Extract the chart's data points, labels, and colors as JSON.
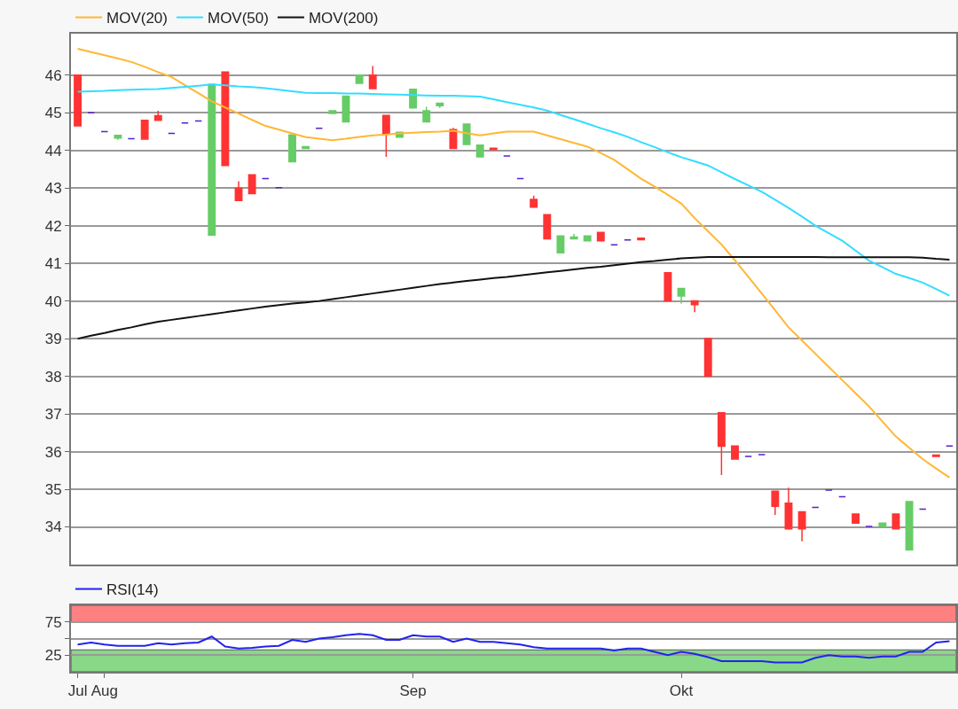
{
  "chart_data": [
    {
      "type": "candlestick",
      "categories": [
        null,
        null,
        null,
        null,
        null,
        null,
        null,
        null,
        null,
        null,
        null,
        null,
        null,
        null,
        null,
        null,
        null,
        null,
        null,
        null,
        null,
        null,
        null,
        null,
        null,
        null,
        null,
        null,
        null,
        null,
        null,
        null,
        null,
        null,
        null,
        null,
        null,
        null,
        null,
        null,
        null,
        null,
        null,
        null,
        null,
        null,
        null,
        null,
        null,
        null,
        null,
        null,
        null,
        null,
        null,
        null,
        null,
        null,
        null,
        null,
        null,
        null,
        null,
        null,
        null,
        null
      ],
      "ohlc": [
        [
          46.0,
          46.0,
          44.65,
          44.65
        ],
        [
          45.0,
          45.0,
          45.0,
          45.0
        ],
        [
          44.5,
          44.5,
          44.5,
          44.5
        ],
        [
          44.33,
          44.4,
          44.28,
          44.4
        ],
        [
          44.31,
          44.31,
          44.31,
          44.31
        ],
        [
          44.8,
          44.8,
          44.3,
          44.3
        ],
        [
          44.92,
          45.05,
          44.8,
          44.8
        ],
        [
          44.45,
          44.45,
          44.45,
          44.45
        ],
        [
          44.73,
          44.73,
          44.73,
          44.73
        ],
        [
          44.78,
          44.78,
          44.78,
          44.78
        ],
        [
          41.75,
          45.75,
          41.75,
          45.75
        ],
        [
          46.08,
          46.08,
          43.6,
          43.6
        ],
        [
          43.0,
          43.18,
          42.67,
          42.67
        ],
        [
          43.35,
          43.35,
          42.85,
          42.85
        ],
        [
          43.25,
          43.25,
          43.25,
          43.25
        ],
        [
          43.01,
          43.01,
          43.01,
          43.01
        ],
        [
          43.7,
          44.41,
          43.7,
          44.41
        ],
        [
          44.05,
          44.1,
          44.05,
          44.1
        ],
        [
          44.59,
          44.59,
          44.59,
          44.59
        ],
        [
          44.98,
          45.05,
          44.98,
          45.05
        ],
        [
          44.76,
          45.44,
          44.76,
          45.44
        ],
        [
          45.78,
          46.0,
          45.78,
          46.0
        ],
        [
          46.0,
          46.24,
          45.64,
          45.64
        ],
        [
          44.93,
          44.93,
          43.83,
          44.44
        ],
        [
          44.35,
          44.48,
          44.35,
          44.48
        ],
        [
          45.13,
          45.62,
          45.13,
          45.62
        ],
        [
          44.76,
          45.16,
          44.76,
          45.05
        ],
        [
          45.19,
          45.25,
          45.13,
          45.25
        ],
        [
          44.55,
          44.6,
          44.05,
          44.05
        ],
        [
          44.16,
          44.7,
          44.16,
          44.7
        ],
        [
          43.83,
          44.14,
          43.83,
          44.14
        ],
        [
          44.06,
          44.06,
          44.02,
          44.02
        ],
        [
          43.85,
          43.85,
          43.85,
          43.85
        ],
        [
          43.25,
          43.25,
          43.25,
          43.25
        ],
        [
          42.7,
          42.8,
          42.49,
          42.49
        ],
        [
          42.29,
          42.29,
          41.65,
          41.65
        ],
        [
          41.28,
          41.73,
          41.28,
          41.73
        ],
        [
          41.65,
          41.78,
          41.65,
          41.7
        ],
        [
          41.6,
          41.73,
          41.6,
          41.73
        ],
        [
          41.82,
          41.82,
          41.6,
          41.6
        ],
        [
          41.49,
          41.49,
          41.49,
          41.49
        ],
        [
          41.62,
          41.62,
          41.62,
          41.62
        ],
        [
          41.67,
          41.67,
          41.63,
          41.63
        ],
        null,
        [
          40.75,
          40.75,
          40.0,
          40.0
        ],
        [
          40.13,
          40.33,
          39.93,
          40.33
        ],
        [
          40.0,
          40.0,
          39.7,
          39.9
        ],
        [
          39.0,
          39.0,
          38.0,
          38.0
        ],
        [
          37.03,
          37.03,
          35.38,
          36.14
        ],
        [
          36.15,
          36.15,
          35.8,
          35.8
        ],
        [
          35.87,
          35.87,
          35.87,
          35.87
        ],
        [
          35.92,
          35.92,
          35.92,
          35.92
        ],
        [
          34.95,
          34.95,
          34.32,
          34.55
        ],
        [
          34.63,
          35.04,
          33.95,
          33.95
        ],
        [
          34.4,
          34.4,
          33.62,
          33.95
        ],
        [
          34.52,
          34.52,
          34.52,
          34.52
        ],
        [
          34.98,
          34.98,
          34.98,
          34.98
        ],
        [
          34.8,
          34.8,
          34.8,
          34.8
        ],
        [
          34.34,
          34.34,
          34.1,
          34.1
        ],
        [
          34.01,
          34.01,
          34.01,
          34.01
        ],
        [
          34.01,
          34.1,
          34.01,
          34.1
        ],
        [
          34.34,
          34.34,
          33.95,
          33.95
        ],
        [
          33.39,
          34.67,
          33.39,
          34.67
        ],
        [
          34.47,
          34.47,
          34.47,
          34.47
        ],
        [
          35.91,
          35.91,
          35.87,
          35.87
        ],
        [
          36.15,
          36.15,
          36.15,
          36.15
        ]
      ],
      "colors": [
        "#ff3333",
        "#5522cc",
        "#5522cc",
        "#66cc66",
        "#5522cc",
        "#ff3333",
        "#ff3333",
        "#5522cc",
        "#5522cc",
        "#5522cc",
        "#66cc66",
        "#ff3333",
        "#ff3333",
        "#ff3333",
        "#5522cc",
        "#5522cc",
        "#66cc66",
        "#66cc66",
        "#5522cc",
        "#66cc66",
        "#66cc66",
        "#66cc66",
        "#ff3333",
        "#ff3333",
        "#66cc66",
        "#66cc66",
        "#66cc66",
        "#66cc66",
        "#ff3333",
        "#66cc66",
        "#66cc66",
        "#ff3333",
        "#5522cc",
        "#5522cc",
        "#ff3333",
        "#ff3333",
        "#66cc66",
        "#66cc66",
        "#66cc66",
        "#ff3333",
        "#5522cc",
        "#5522cc",
        "#ff3333",
        null,
        "#ff3333",
        "#66cc66",
        "#ff3333",
        "#ff3333",
        "#ff3333",
        "#ff3333",
        "#5522cc",
        "#5522cc",
        "#ff3333",
        "#ff3333",
        "#ff3333",
        "#5522cc",
        "#5522cc",
        "#5522cc",
        "#ff3333",
        "#5522cc",
        "#66cc66",
        "#ff3333",
        "#66cc66",
        "#5522cc",
        "#ff3333",
        "#5522cc"
      ],
      "series": [
        {
          "name": "MOV(20)",
          "type": "line",
          "color": "#ffb733",
          "values": [
            46.7,
            46.61,
            46.53,
            46.44,
            46.35,
            46.22,
            46.08,
            45.95,
            45.73,
            45.52,
            45.3,
            45.14,
            44.98,
            44.81,
            44.65,
            44.55,
            44.45,
            44.35,
            44.31,
            44.27,
            44.31,
            44.36,
            44.4,
            44.42,
            44.45,
            44.47,
            44.49,
            44.5,
            44.52,
            44.46,
            44.4,
            44.45,
            44.5,
            44.5,
            44.5,
            44.4,
            44.3,
            44.2,
            44.1,
            43.93,
            43.75,
            43.5,
            43.25,
            43.04,
            42.82,
            42.59,
            42.2,
            41.85,
            41.5,
            41.08,
            40.64,
            40.2,
            39.75,
            39.3,
            38.95,
            38.6,
            38.25,
            37.9,
            37.55,
            37.2,
            36.8,
            36.4,
            36.1,
            35.8,
            35.55,
            35.31
          ]
        },
        {
          "name": "MOV(50)",
          "type": "line",
          "color": "#33ddff",
          "values": [
            45.56,
            45.57,
            45.58,
            45.6,
            45.61,
            45.62,
            45.63,
            45.66,
            45.69,
            45.72,
            45.75,
            45.73,
            45.7,
            45.68,
            45.65,
            45.61,
            45.57,
            45.53,
            45.52,
            45.52,
            45.51,
            45.51,
            45.5,
            45.49,
            45.48,
            45.47,
            45.46,
            45.45,
            45.45,
            45.44,
            45.43,
            45.36,
            45.28,
            45.21,
            45.14,
            45.06,
            44.94,
            44.83,
            44.71,
            44.59,
            44.48,
            44.36,
            44.22,
            44.09,
            43.95,
            43.82,
            43.71,
            43.6,
            43.42,
            43.24,
            43.07,
            42.9,
            42.69,
            42.47,
            42.24,
            42.0,
            41.8,
            41.6,
            41.34,
            41.07,
            40.9,
            40.72,
            40.61,
            40.49,
            40.32,
            40.14
          ]
        },
        {
          "name": "MOV(200)",
          "type": "line",
          "color": "#111111",
          "values": [
            39.0,
            39.08,
            39.15,
            39.23,
            39.3,
            39.38,
            39.45,
            39.5,
            39.55,
            39.6,
            39.65,
            39.7,
            39.75,
            39.8,
            39.85,
            39.89,
            39.93,
            39.96,
            40.0,
            40.05,
            40.1,
            40.15,
            40.2,
            40.25,
            40.3,
            40.35,
            40.4,
            40.45,
            40.49,
            40.53,
            40.57,
            40.61,
            40.64,
            40.68,
            40.72,
            40.76,
            40.8,
            40.84,
            40.88,
            40.91,
            40.95,
            40.99,
            41.03,
            41.06,
            41.1,
            41.13,
            41.15,
            41.17,
            41.17,
            41.17,
            41.17,
            41.17,
            41.17,
            41.17,
            41.17,
            41.17,
            41.16,
            41.16,
            41.16,
            41.16,
            41.16,
            41.16,
            41.16,
            41.15,
            41.12,
            41.1
          ]
        }
      ],
      "ylim": [
        33.0,
        47.1
      ],
      "yticks": [
        34,
        35,
        36,
        37,
        38,
        39,
        40,
        41,
        42,
        43,
        44,
        45,
        46
      ],
      "grid": "y",
      "legend": "top left",
      "tick_labels": "y"
    },
    {
      "type": "line",
      "categories": [
        "Jul",
        null,
        "Aug",
        null,
        null,
        null,
        null,
        null,
        null,
        null,
        null,
        null,
        null,
        null,
        null,
        null,
        null,
        null,
        null,
        null,
        null,
        null,
        null,
        null,
        null,
        "Sep",
        null,
        null,
        null,
        null,
        null,
        null,
        null,
        null,
        null,
        null,
        null,
        null,
        null,
        null,
        null,
        null,
        null,
        null,
        null,
        "Okt",
        null,
        null,
        null,
        null,
        null,
        null,
        null,
        null,
        null,
        null,
        null,
        null,
        null,
        null,
        null,
        null,
        null,
        null,
        null,
        null
      ],
      "series": [
        {
          "name": "RSI(14)",
          "type": "line",
          "color": "#2222ee",
          "values": [
            41,
            44,
            41,
            39,
            39,
            39,
            43,
            41,
            43,
            44,
            53,
            38,
            35,
            36,
            38,
            39,
            48,
            45,
            50,
            52,
            55,
            57,
            55,
            48,
            48,
            55,
            53,
            53,
            45,
            50,
            45,
            45,
            43,
            41,
            37,
            35,
            35,
            35,
            35,
            35,
            32,
            35,
            35,
            30,
            25,
            30,
            27,
            22,
            16,
            16,
            16,
            16,
            14,
            14,
            14,
            21,
            25,
            23,
            23,
            21,
            23,
            23,
            30,
            30,
            44,
            46
          ]
        }
      ],
      "bands": [
        {
          "axis": "y",
          "from": 74,
          "to": 100,
          "color": "#ff8080"
        },
        {
          "axis": "y",
          "from": 0,
          "to": 33,
          "color": "#88d888"
        }
      ],
      "ylim": [
        0,
        100
      ],
      "yticks": [
        25,
        {
          "value": 50,
          "label": null
        },
        75
      ],
      "grid": "y",
      "legend": "top left"
    }
  ]
}
